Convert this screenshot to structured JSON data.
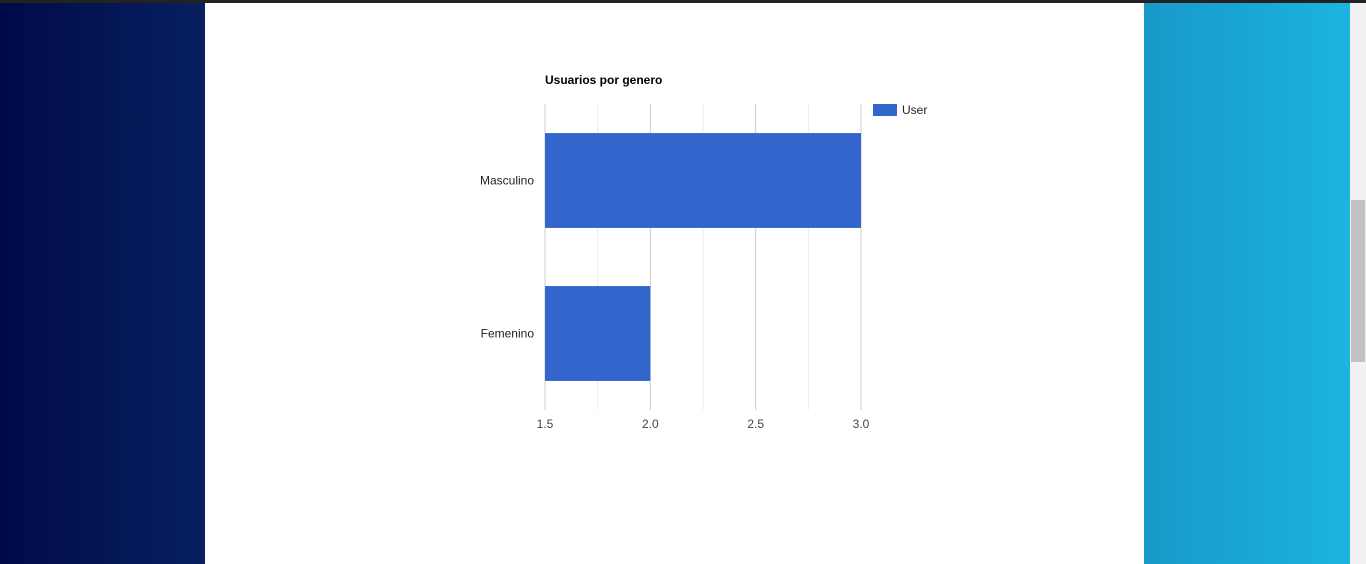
{
  "chart_data": {
    "type": "bar",
    "orientation": "horizontal",
    "title": "Usuarios por genero",
    "categories": [
      "Masculino",
      "Femenino"
    ],
    "series": [
      {
        "name": "User",
        "values": [
          3,
          2
        ],
        "color": "#3366cc"
      }
    ],
    "xlim": [
      1.5,
      3.0
    ],
    "xticks": [
      "1.5",
      "2.0",
      "2.5",
      "3.0"
    ],
    "grid": true,
    "legend": "right"
  },
  "colors": {
    "left_band_start": "#000a4a",
    "left_band_end": "#07205e",
    "right_band_start": "#1799c9",
    "right_band_end": "#1cb4e0",
    "gridline": "#cccccc",
    "minor_gridline": "#ebebeb"
  }
}
